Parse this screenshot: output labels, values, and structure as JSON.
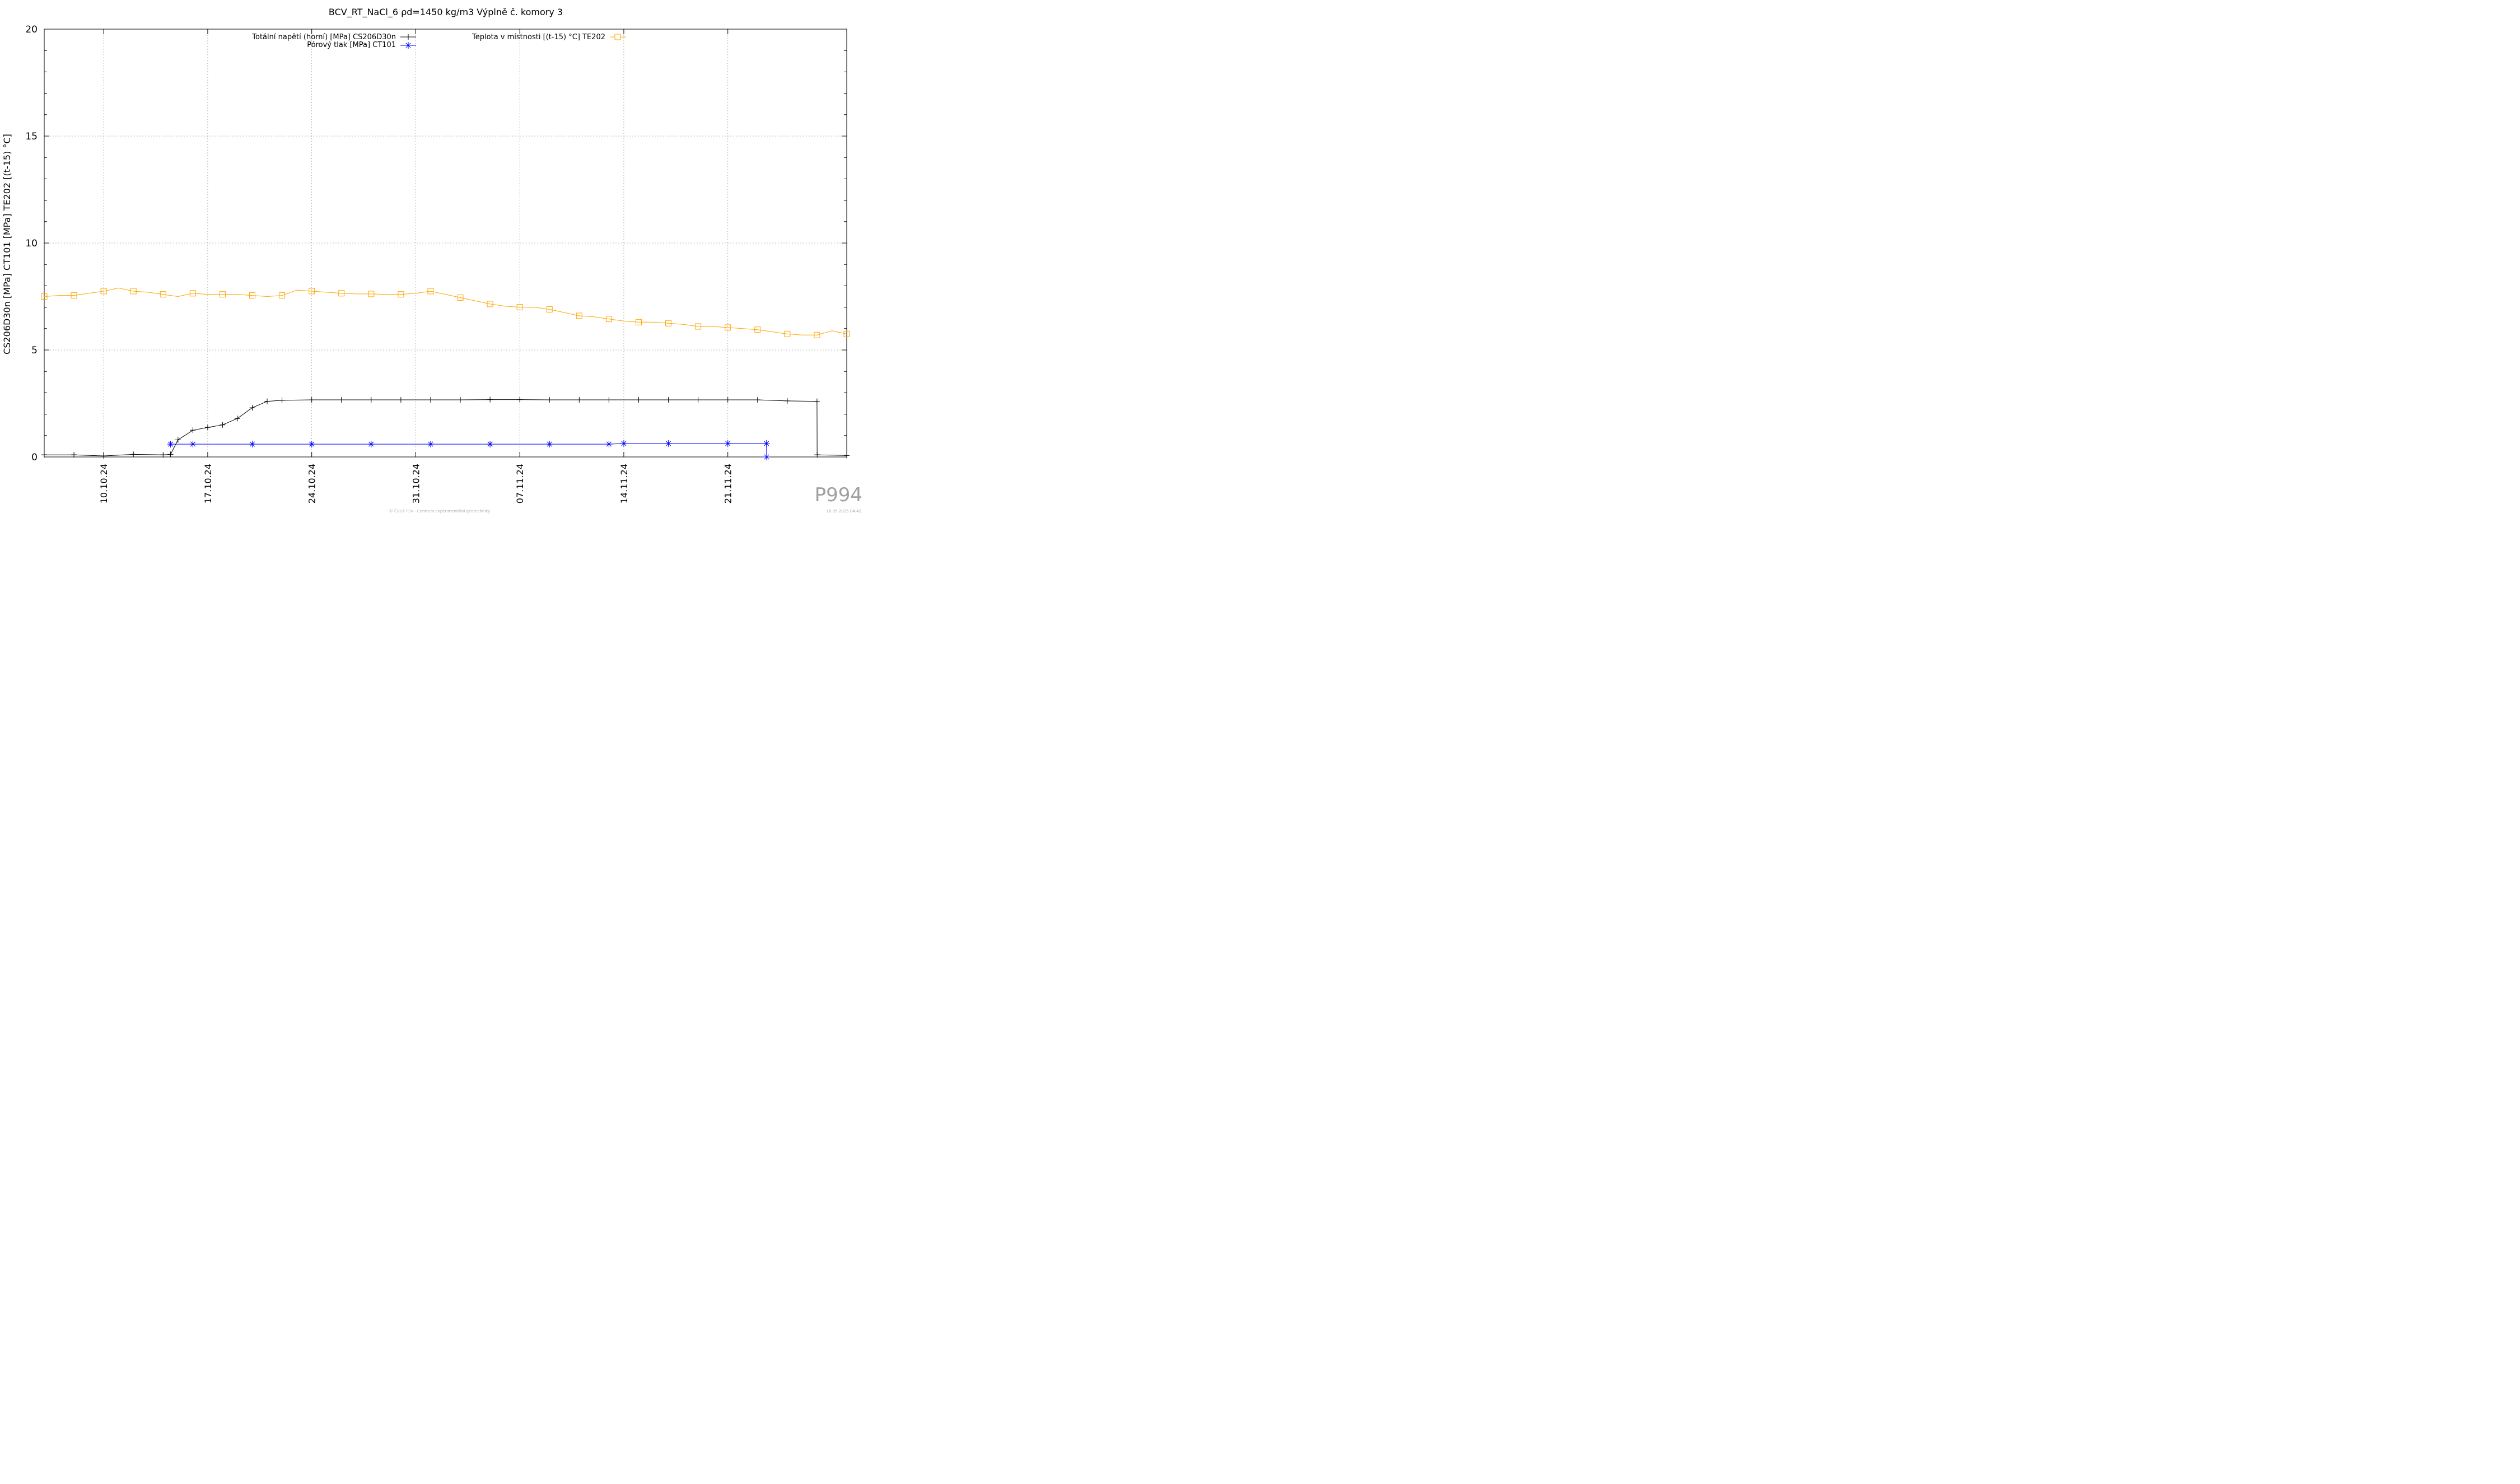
{
  "chart_data": {
    "type": "line",
    "title": "BCV_RT_NaCl_6 ρd=1450 kg/m3 Výplně č. komory 3",
    "xlabel": "",
    "ylabel": "CS206D30n [MPa] CT101 [MPa] TE202 [(t-15) °C]",
    "ylim": [
      0,
      20
    ],
    "xlim": [
      "2024-10-06",
      "2024-11-29"
    ],
    "y_ticks": [
      "0",
      "5",
      "10",
      "15",
      "20"
    ],
    "x_ticks": [
      {
        "date": "2024-10-10",
        "label": "10.10.24"
      },
      {
        "date": "2024-10-17",
        "label": "17.10.24"
      },
      {
        "date": "2024-10-24",
        "label": "24.10.24"
      },
      {
        "date": "2024-10-31",
        "label": "31.10.24"
      },
      {
        "date": "2024-11-07",
        "label": "07.11.24"
      },
      {
        "date": "2024-11-14",
        "label": "14.11.24"
      },
      {
        "date": "2024-11-21",
        "label": "21.11.24"
      }
    ],
    "grid": true,
    "legend_position": "top",
    "series": [
      {
        "name": "Totální napětí (horní) [MPa] CS206D30n",
        "color": "#000000",
        "marker": "plus",
        "x": [
          "2024-10-06",
          "2024-10-08",
          "2024-10-10",
          "2024-10-12",
          "2024-10-14",
          "2024-10-14.5",
          "2024-10-15",
          "2024-10-16",
          "2024-10-17",
          "2024-10-18",
          "2024-10-19",
          "2024-10-20",
          "2024-10-21",
          "2024-10-22",
          "2024-10-24",
          "2024-10-26",
          "2024-10-28",
          "2024-10-30",
          "2024-11-01",
          "2024-11-03",
          "2024-11-05",
          "2024-11-07",
          "2024-11-09",
          "2024-11-11",
          "2024-11-13",
          "2024-11-15",
          "2024-11-17",
          "2024-11-19",
          "2024-11-21",
          "2024-11-23",
          "2024-11-25",
          "2024-11-27",
          "2024-11-27.01",
          "2024-11-29"
        ],
        "values": [
          0.1,
          0.1,
          0.05,
          0.12,
          0.1,
          0.12,
          0.8,
          1.25,
          1.38,
          1.5,
          1.8,
          2.3,
          2.6,
          2.65,
          2.67,
          2.67,
          2.67,
          2.67,
          2.67,
          2.67,
          2.68,
          2.68,
          2.67,
          2.67,
          2.67,
          2.67,
          2.67,
          2.67,
          2.67,
          2.67,
          2.62,
          2.6,
          0.1,
          0.07
        ]
      },
      {
        "name": "Pórový tlak [MPa] CT101",
        "color": "#0000ff",
        "marker": "star",
        "x": [
          "2024-10-06",
          "2024-10-14.4",
          "2024-10-14.5",
          "2024-10-16",
          "2024-10-20",
          "2024-10-24",
          "2024-10-28",
          "2024-11-01",
          "2024-11-05",
          "2024-11-09",
          "2024-11-13",
          "2024-11-14",
          "2024-11-17",
          "2024-11-21",
          "2024-11-23.6",
          "2024-11-23.61"
        ],
        "values": [
          null,
          null,
          0.6,
          0.6,
          0.6,
          0.6,
          0.6,
          0.6,
          0.6,
          0.6,
          0.6,
          0.63,
          0.63,
          0.63,
          0.63,
          0
        ]
      },
      {
        "name": "Teplota v místnosti [(t-15) °C] TE202",
        "color": "#ffa500",
        "marker": "square",
        "x": [
          "2024-10-06",
          "2024-10-07",
          "2024-10-08",
          "2024-10-09",
          "2024-10-10",
          "2024-10-11",
          "2024-10-12",
          "2024-10-13",
          "2024-10-14",
          "2024-10-15",
          "2024-10-16",
          "2024-10-17",
          "2024-10-18",
          "2024-10-19",
          "2024-10-20",
          "2024-10-21",
          "2024-10-22",
          "2024-10-23",
          "2024-10-24",
          "2024-10-25",
          "2024-10-26",
          "2024-10-27",
          "2024-10-28",
          "2024-10-29",
          "2024-10-30",
          "2024-10-31",
          "2024-11-01",
          "2024-11-02",
          "2024-11-03",
          "2024-11-04",
          "2024-11-05",
          "2024-11-06",
          "2024-11-07",
          "2024-11-08",
          "2024-11-09",
          "2024-11-10",
          "2024-11-11",
          "2024-11-12",
          "2024-11-13",
          "2024-11-14",
          "2024-11-15",
          "2024-11-16",
          "2024-11-17",
          "2024-11-18",
          "2024-11-19",
          "2024-11-20",
          "2024-11-21",
          "2024-11-22",
          "2024-11-23",
          "2024-11-24",
          "2024-11-25",
          "2024-11-26",
          "2024-11-27",
          "2024-11-28",
          "2024-11-29"
        ],
        "values": [
          7.5,
          7.55,
          7.55,
          7.65,
          7.75,
          7.9,
          7.75,
          7.7,
          7.6,
          7.5,
          7.65,
          7.6,
          7.6,
          7.6,
          7.55,
          7.5,
          7.55,
          7.8,
          7.75,
          7.7,
          7.65,
          7.62,
          7.62,
          7.6,
          7.6,
          7.65,
          7.75,
          7.6,
          7.45,
          7.3,
          7.15,
          7.05,
          7.0,
          7.0,
          6.9,
          6.75,
          6.6,
          6.55,
          6.45,
          6.35,
          6.3,
          6.3,
          6.25,
          6.2,
          6.1,
          6.1,
          6.05,
          6.0,
          5.95,
          5.85,
          5.75,
          5.7,
          5.7,
          5.9,
          5.75
        ]
      }
    ]
  },
  "watermark": {
    "code": "P994",
    "copyright": "© ČVUT FSv - Centrum experimentální geotechniky",
    "timestamp": "10.05.2025 04:42"
  }
}
